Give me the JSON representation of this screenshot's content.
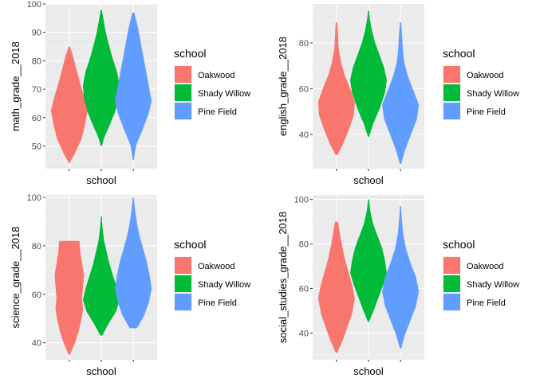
{
  "chart_data": [
    {
      "type": "violin",
      "ylabel": "math_grade__2018",
      "xlabel": "school",
      "ylim": [
        42,
        100
      ],
      "yticks": [
        50,
        60,
        70,
        80,
        90,
        100
      ],
      "grid": true,
      "legend": {
        "title": "school",
        "placement": "right"
      },
      "series": [
        {
          "name": "Oakwood",
          "color": "#F8766D",
          "min": 44,
          "max": 85,
          "profile": [
            [
              0,
              0.02
            ],
            [
              0.08,
              0.3
            ],
            [
              0.2,
              0.65
            ],
            [
              0.32,
              0.85
            ],
            [
              0.45,
              1.0
            ],
            [
              0.55,
              0.85
            ],
            [
              0.68,
              0.6
            ],
            [
              0.8,
              0.4
            ],
            [
              0.92,
              0.2
            ],
            [
              1,
              0.03
            ]
          ]
        },
        {
          "name": "Shady Willow",
          "color": "#00BA38",
          "min": 50,
          "max": 98,
          "profile": [
            [
              0,
              0.03
            ],
            [
              0.06,
              0.15
            ],
            [
              0.15,
              0.45
            ],
            [
              0.25,
              0.75
            ],
            [
              0.35,
              0.95
            ],
            [
              0.45,
              1.0
            ],
            [
              0.55,
              0.85
            ],
            [
              0.65,
              0.6
            ],
            [
              0.75,
              0.4
            ],
            [
              0.85,
              0.22
            ],
            [
              0.93,
              0.12
            ],
            [
              1,
              0.02
            ]
          ]
        },
        {
          "name": "Pine Field",
          "color": "#619CFF",
          "min": 45,
          "max": 97,
          "profile": [
            [
              0,
              0.02
            ],
            [
              0.1,
              0.15
            ],
            [
              0.22,
              0.55
            ],
            [
              0.32,
              0.85
            ],
            [
              0.4,
              1.0
            ],
            [
              0.5,
              0.85
            ],
            [
              0.6,
              0.7
            ],
            [
              0.7,
              0.55
            ],
            [
              0.8,
              0.4
            ],
            [
              0.9,
              0.25
            ],
            [
              1,
              0.05
            ]
          ]
        }
      ]
    },
    {
      "type": "violin",
      "ylabel": "english_grade__2018",
      "xlabel": "school",
      "ylim": [
        25,
        97
      ],
      "yticks": [
        40,
        60,
        80
      ],
      "grid": true,
      "legend": {
        "title": "school",
        "placement": "right"
      },
      "series": [
        {
          "name": "Oakwood",
          "color": "#F8766D",
          "min": 31,
          "max": 89,
          "profile": [
            [
              0,
              0.05
            ],
            [
              0.08,
              0.35
            ],
            [
              0.2,
              0.7
            ],
            [
              0.3,
              0.95
            ],
            [
              0.4,
              1.0
            ],
            [
              0.5,
              0.75
            ],
            [
              0.6,
              0.45
            ],
            [
              0.7,
              0.25
            ],
            [
              0.8,
              0.12
            ],
            [
              0.9,
              0.08
            ],
            [
              1,
              0.04
            ]
          ]
        },
        {
          "name": "Shady Willow",
          "color": "#00BA38",
          "min": 39,
          "max": 94,
          "profile": [
            [
              0,
              0.03
            ],
            [
              0.1,
              0.25
            ],
            [
              0.22,
              0.6
            ],
            [
              0.35,
              0.9
            ],
            [
              0.45,
              1.0
            ],
            [
              0.55,
              0.85
            ],
            [
              0.65,
              0.6
            ],
            [
              0.75,
              0.35
            ],
            [
              0.85,
              0.18
            ],
            [
              0.93,
              0.08
            ],
            [
              1,
              0.02
            ]
          ]
        },
        {
          "name": "Pine Field",
          "color": "#619CFF",
          "min": 27,
          "max": 89,
          "profile": [
            [
              0,
              0.03
            ],
            [
              0.1,
              0.25
            ],
            [
              0.22,
              0.6
            ],
            [
              0.32,
              0.9
            ],
            [
              0.42,
              1.0
            ],
            [
              0.52,
              0.7
            ],
            [
              0.62,
              0.4
            ],
            [
              0.72,
              0.2
            ],
            [
              0.82,
              0.12
            ],
            [
              0.92,
              0.08
            ],
            [
              1,
              0.03
            ]
          ]
        }
      ]
    },
    {
      "type": "violin",
      "ylabel": "science_grade__2018",
      "xlabel": "school",
      "ylim": [
        33,
        101
      ],
      "yticks": [
        40,
        60,
        80,
        100
      ],
      "grid": true,
      "legend": {
        "title": "school",
        "placement": "right"
      },
      "series": [
        {
          "name": "Oakwood",
          "color": "#F8766D",
          "min": 35,
          "max": 82,
          "profile": [
            [
              0,
              0.03
            ],
            [
              0.1,
              0.3
            ],
            [
              0.2,
              0.5
            ],
            [
              0.3,
              0.65
            ],
            [
              0.4,
              0.75
            ],
            [
              0.5,
              0.7
            ],
            [
              0.6,
              0.75
            ],
            [
              0.7,
              0.8
            ],
            [
              0.8,
              0.7
            ],
            [
              0.9,
              0.6
            ],
            [
              1,
              0.55
            ]
          ]
        },
        {
          "name": "Shady Willow",
          "color": "#00BA38",
          "min": 43,
          "max": 92,
          "profile": [
            [
              0,
              0.05
            ],
            [
              0.1,
              0.4
            ],
            [
              0.2,
              0.8
            ],
            [
              0.3,
              1.0
            ],
            [
              0.4,
              0.85
            ],
            [
              0.5,
              0.65
            ],
            [
              0.6,
              0.45
            ],
            [
              0.7,
              0.3
            ],
            [
              0.8,
              0.15
            ],
            [
              0.9,
              0.07
            ],
            [
              1,
              0.02
            ]
          ]
        },
        {
          "name": "Pine Field",
          "color": "#619CFF",
          "min": 46,
          "max": 100,
          "profile": [
            [
              0,
              0.2
            ],
            [
              0.1,
              0.6
            ],
            [
              0.2,
              0.85
            ],
            [
              0.3,
              1.0
            ],
            [
              0.4,
              0.9
            ],
            [
              0.5,
              0.75
            ],
            [
              0.6,
              0.55
            ],
            [
              0.7,
              0.35
            ],
            [
              0.8,
              0.2
            ],
            [
              0.9,
              0.1
            ],
            [
              1,
              0.02
            ]
          ]
        }
      ]
    },
    {
      "type": "violin",
      "ylabel": "social_studies_grade__2018",
      "xlabel": "school",
      "ylim": [
        28,
        102
      ],
      "yticks": [
        40,
        60,
        80,
        100
      ],
      "grid": true,
      "legend": {
        "title": "school",
        "placement": "right"
      },
      "series": [
        {
          "name": "Oakwood",
          "color": "#F8766D",
          "min": 31,
          "max": 90,
          "profile": [
            [
              0,
              0.03
            ],
            [
              0.1,
              0.35
            ],
            [
              0.2,
              0.6
            ],
            [
              0.3,
              0.85
            ],
            [
              0.42,
              1.0
            ],
            [
              0.52,
              0.85
            ],
            [
              0.62,
              0.65
            ],
            [
              0.72,
              0.45
            ],
            [
              0.82,
              0.3
            ],
            [
              0.9,
              0.2
            ],
            [
              1,
              0.08
            ]
          ]
        },
        {
          "name": "Shady Willow",
          "color": "#00BA38",
          "min": 45,
          "max": 100,
          "profile": [
            [
              0,
              0.03
            ],
            [
              0.1,
              0.3
            ],
            [
              0.2,
              0.55
            ],
            [
              0.3,
              0.8
            ],
            [
              0.4,
              1.0
            ],
            [
              0.5,
              0.9
            ],
            [
              0.6,
              0.75
            ],
            [
              0.7,
              0.5
            ],
            [
              0.8,
              0.25
            ],
            [
              0.9,
              0.1
            ],
            [
              1,
              0.02
            ]
          ]
        },
        {
          "name": "Pine Field",
          "color": "#619CFF",
          "min": 33,
          "max": 97,
          "profile": [
            [
              0,
              0.03
            ],
            [
              0.1,
              0.25
            ],
            [
              0.2,
              0.55
            ],
            [
              0.3,
              0.85
            ],
            [
              0.4,
              1.0
            ],
            [
              0.5,
              0.85
            ],
            [
              0.6,
              0.55
            ],
            [
              0.7,
              0.3
            ],
            [
              0.8,
              0.15
            ],
            [
              0.9,
              0.08
            ],
            [
              1,
              0.02
            ]
          ]
        }
      ]
    }
  ]
}
